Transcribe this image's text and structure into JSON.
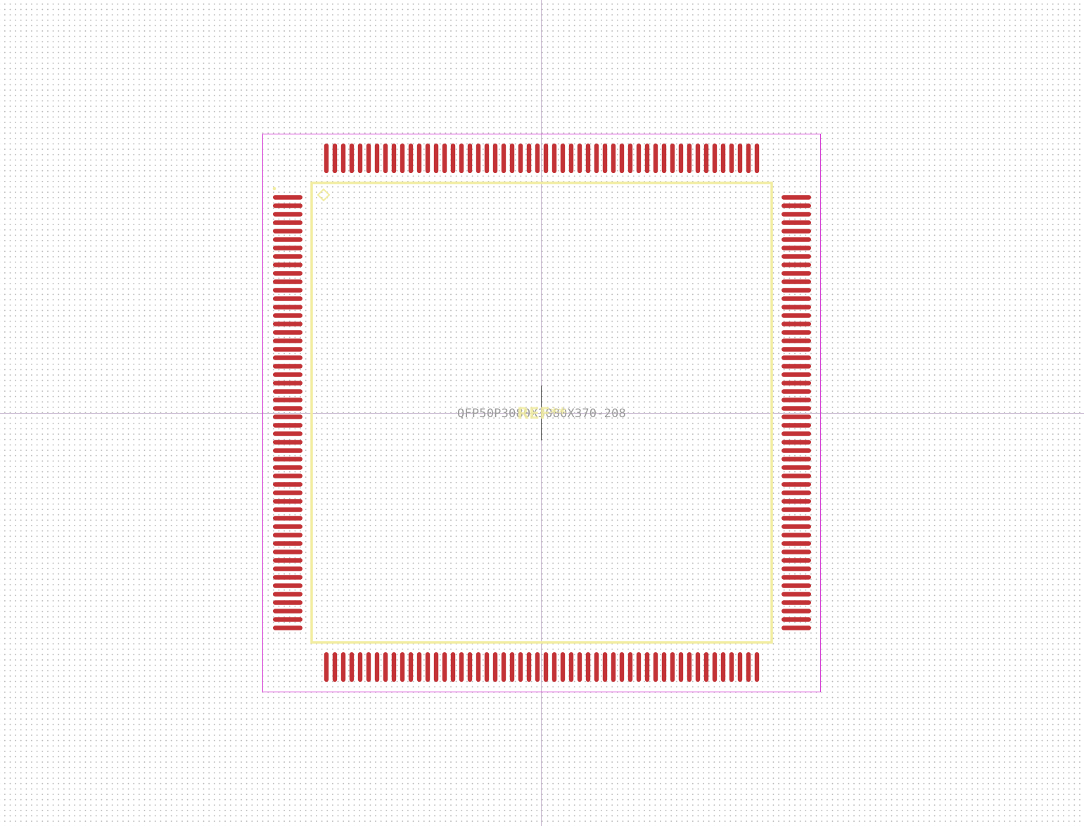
{
  "footprint": {
    "value_label": "QFP50P3080X3080X370-208",
    "reference_label": "REF**",
    "pin_count": 208,
    "pins_per_side": 52
  },
  "colors": {
    "pad": "#c33236",
    "silkscreen": "#f2eda1",
    "courtyard": "#d43bd4",
    "fab_text": "#9a9a9a",
    "ref_text": "#f2eda1",
    "axis": "#c8b8d0",
    "grid_dot": "#b8b8b8"
  },
  "icons": {
    "pin1_marker": "diamond-pin1-marker-icon",
    "origin": "origin-crosshair-icon"
  }
}
